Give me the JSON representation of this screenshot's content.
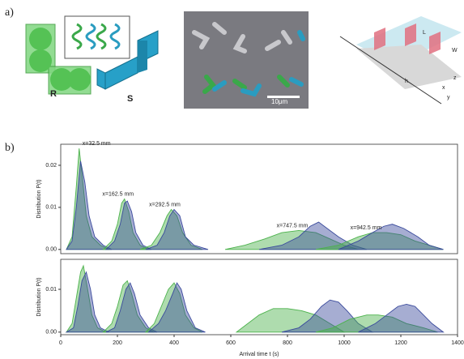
{
  "panel_a": {
    "label": "a)",
    "shape_r": "R",
    "shape_s": "S",
    "scale_bar": "10μm",
    "dim_l": "L",
    "dim_w": "W",
    "dim_h": "h",
    "axis_z": "z",
    "axis_x": "x",
    "axis_y": "y"
  },
  "panel_b": {
    "label": "b)"
  },
  "chart_data": [
    {
      "type": "area",
      "ylabel": "Distribution P(t)",
      "xlim": [
        0,
        1400
      ],
      "ylim": [
        -0.001,
        0.025
      ],
      "yticks": [
        {
          "value": 0,
          "label": "0.00"
        },
        0.01,
        0.02
      ],
      "annotations": [
        "x=32.5 mm",
        "x=162.5 mm",
        "x=292.5 mm",
        "x=747.5 mm",
        "x=942.5 mm"
      ],
      "series": [
        {
          "color": "#4cb24c",
          "x": [
            20,
            40,
            55,
            65,
            75,
            90,
            110,
            140,
            170
          ],
          "values": [
            0,
            0.003,
            0.015,
            0.024,
            0.018,
            0.008,
            0.003,
            0.001,
            0
          ]
        },
        {
          "color": "#3a4a9c",
          "x": [
            20,
            40,
            55,
            70,
            85,
            100,
            120,
            150,
            180
          ],
          "values": [
            0,
            0.002,
            0.01,
            0.021,
            0.016,
            0.008,
            0.003,
            0.001,
            0
          ]
        },
        {
          "color": "#4cb24c",
          "x": [
            150,
            180,
            200,
            215,
            225,
            240,
            255,
            280,
            310
          ],
          "values": [
            0,
            0.002,
            0.006,
            0.011,
            0.012,
            0.009,
            0.004,
            0.001,
            0
          ]
        },
        {
          "color": "#3a4a9c",
          "x": [
            160,
            190,
            210,
            225,
            235,
            250,
            265,
            290,
            320
          ],
          "values": [
            0,
            0.002,
            0.006,
            0.011,
            0.0115,
            0.009,
            0.004,
            0.001,
            0
          ]
        },
        {
          "color": "#4cb24c",
          "x": [
            280,
            320,
            350,
            375,
            390,
            410,
            430,
            460,
            500
          ],
          "values": [
            0,
            0.001,
            0.004,
            0.008,
            0.0095,
            0.008,
            0.004,
            0.001,
            0
          ]
        },
        {
          "color": "#3a4a9c",
          "x": [
            300,
            340,
            365,
            385,
            400,
            420,
            440,
            470,
            520
          ],
          "values": [
            0,
            0.001,
            0.004,
            0.008,
            0.0095,
            0.008,
            0.003,
            0.001,
            0
          ]
        },
        {
          "color": "#4cb24c",
          "x": [
            580,
            650,
            720,
            780,
            840,
            900,
            950,
            1000,
            1050
          ],
          "values": [
            0,
            0.001,
            0.0025,
            0.004,
            0.0045,
            0.004,
            0.0025,
            0.001,
            0
          ]
        },
        {
          "color": "#3a4a9c",
          "x": [
            700,
            780,
            840,
            880,
            910,
            940,
            980,
            1030,
            1080
          ],
          "values": [
            0,
            0.001,
            0.003,
            0.0055,
            0.0065,
            0.005,
            0.003,
            0.001,
            0
          ]
        },
        {
          "color": "#4cb24c",
          "x": [
            900,
            980,
            1050,
            1100,
            1150,
            1200,
            1250,
            1300,
            1350
          ],
          "values": [
            0,
            0.001,
            0.003,
            0.004,
            0.004,
            0.0035,
            0.002,
            0.001,
            0
          ]
        },
        {
          "color": "#3a4a9c",
          "x": [
            980,
            1050,
            1100,
            1140,
            1170,
            1210,
            1260,
            1300,
            1350
          ],
          "values": [
            0,
            0.002,
            0.004,
            0.0055,
            0.006,
            0.005,
            0.003,
            0.001,
            0
          ]
        }
      ]
    },
    {
      "type": "area",
      "ylabel": "Distribution P(t)",
      "xlabel": "Arrival time t (s)",
      "xlim": [
        0,
        1400
      ],
      "ylim": [
        -0.0006,
        0.017
      ],
      "yticks": [
        {
          "value": 0,
          "label": "0.00"
        },
        0.01
      ],
      "xticks": [
        0,
        200,
        400,
        600,
        800,
        1000,
        1200,
        1400
      ],
      "series": [
        {
          "color": "#4cb24c",
          "x": [
            20,
            40,
            55,
            70,
            80,
            95,
            110,
            130,
            160
          ],
          "values": [
            0,
            0.002,
            0.008,
            0.014,
            0.0155,
            0.01,
            0.004,
            0.001,
            0
          ]
        },
        {
          "color": "#3a4a9c",
          "x": [
            20,
            45,
            60,
            75,
            90,
            105,
            120,
            140,
            170
          ],
          "values": [
            0,
            0.001,
            0.006,
            0.012,
            0.014,
            0.01,
            0.004,
            0.001,
            0
          ]
        },
        {
          "color": "#4cb24c",
          "x": [
            150,
            180,
            200,
            220,
            235,
            250,
            270,
            300,
            330
          ],
          "values": [
            0,
            0.002,
            0.006,
            0.011,
            0.012,
            0.009,
            0.004,
            0.001,
            0
          ]
        },
        {
          "color": "#3a4a9c",
          "x": [
            160,
            190,
            210,
            230,
            245,
            260,
            280,
            310,
            340
          ],
          "values": [
            0,
            0.001,
            0.005,
            0.01,
            0.0115,
            0.009,
            0.004,
            0.001,
            0
          ]
        },
        {
          "color": "#4cb24c",
          "x": [
            300,
            330,
            355,
            380,
            400,
            420,
            440,
            470,
            500
          ],
          "values": [
            0,
            0.002,
            0.006,
            0.01,
            0.0115,
            0.009,
            0.004,
            0.001,
            0
          ]
        },
        {
          "color": "#3a4a9c",
          "x": [
            310,
            345,
            370,
            395,
            410,
            425,
            445,
            475,
            510
          ],
          "values": [
            0,
            0.002,
            0.005,
            0.009,
            0.0115,
            0.01,
            0.005,
            0.001,
            0
          ]
        },
        {
          "color": "#4cb24c",
          "x": [
            620,
            660,
            700,
            750,
            800,
            850,
            900,
            950,
            1000
          ],
          "values": [
            0,
            0.002,
            0.004,
            0.0055,
            0.0055,
            0.005,
            0.004,
            0.002,
            0
          ]
        },
        {
          "color": "#3a4a9c",
          "x": [
            780,
            840,
            880,
            920,
            950,
            980,
            1010,
            1050,
            1100
          ],
          "values": [
            0,
            0.001,
            0.003,
            0.006,
            0.0075,
            0.007,
            0.005,
            0.002,
            0
          ]
        },
        {
          "color": "#4cb24c",
          "x": [
            900,
            960,
            1020,
            1080,
            1120,
            1170,
            1220,
            1280,
            1330
          ],
          "values": [
            0,
            0.001,
            0.003,
            0.004,
            0.004,
            0.0035,
            0.002,
            0.001,
            0
          ]
        },
        {
          "color": "#3a4a9c",
          "x": [
            1050,
            1110,
            1150,
            1190,
            1220,
            1250,
            1280,
            1310,
            1350
          ],
          "values": [
            0,
            0.002,
            0.004,
            0.006,
            0.0065,
            0.006,
            0.004,
            0.002,
            0
          ]
        }
      ]
    }
  ]
}
